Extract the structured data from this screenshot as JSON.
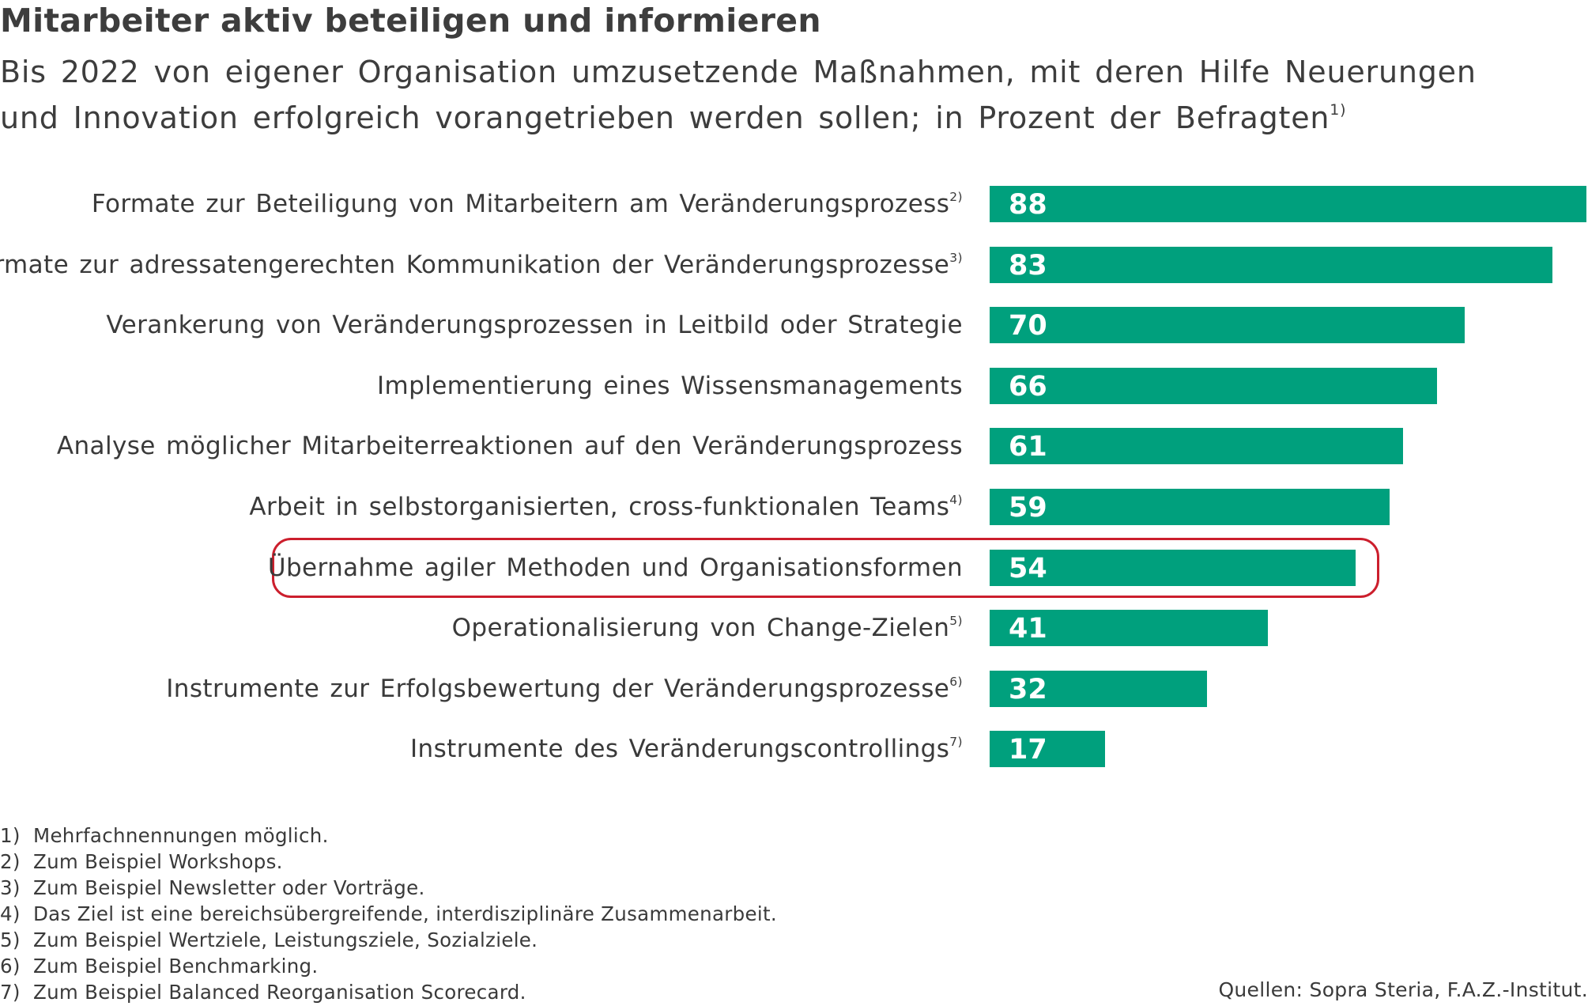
{
  "title": "Mitarbeiter aktiv beteiligen und informieren",
  "subtitle": {
    "text": "Bis 2022 von eigener Organisation umzusetzende Maßnahmen, mit deren Hilfe Neuerungen und Innovation erfolgreich vorangetrieben werden sollen; in Prozent der Befragten",
    "note": "1)"
  },
  "chart_data": {
    "type": "bar",
    "orientation": "horizontal",
    "title": "Mitarbeiter aktiv beteiligen und informieren",
    "categories": [
      "Formate zur Beteiligung von Mitarbeitern am Veränderungsprozess",
      "Formate zur adressatengerechten Kommunikation der Veränderungsprozesse",
      "Verankerung von Veränderungsprozessen in Leitbild oder Strategie",
      "Implementierung eines Wissensmanagements",
      "Analyse möglicher Mitarbeiterreaktionen auf den Veränderungsprozess",
      "Arbeit in selbstorganisierten, cross-funktionalen Teams",
      "Übernahme agiler Methoden und Organisationsformen",
      "Operationalisierung von Change-Zielen",
      "Instrumente zur Erfolgsbewertung der Veränderungsprozesse",
      "Instrumente des Veränderungscontrollings"
    ],
    "notes": [
      "2)",
      "3)",
      "",
      "",
      "",
      "4)",
      "",
      "5)",
      "6)",
      "7)"
    ],
    "values": [
      88,
      83,
      70,
      66,
      61,
      59,
      54,
      41,
      32,
      17
    ],
    "xlim": [
      0,
      88
    ],
    "highlighted_category_index": 6,
    "bar_color": "#00a07d",
    "highlight_color": "#cc1f2d",
    "grid": false,
    "legend": "none"
  },
  "footnotes": [
    {
      "num": "1)",
      "text": "Mehrfachnennungen möglich."
    },
    {
      "num": "2)",
      "text": "Zum Beispiel Workshops."
    },
    {
      "num": "3)",
      "text": "Zum Beispiel Newsletter oder Vorträge."
    },
    {
      "num": "4)",
      "text": "Das Ziel ist eine bereichsübergreifende, interdisziplinäre Zusammenarbeit."
    },
    {
      "num": "5)",
      "text": "Zum Beispiel Wertziele, Leistungsziele, Sozialziele."
    },
    {
      "num": "6)",
      "text": "Zum Beispiel Benchmarking."
    },
    {
      "num": "7)",
      "text": "Zum Beispiel Balanced Reorganisation Scorecard."
    }
  ],
  "source": "Quellen: Sopra Steria, F.A.Z.-Institut."
}
